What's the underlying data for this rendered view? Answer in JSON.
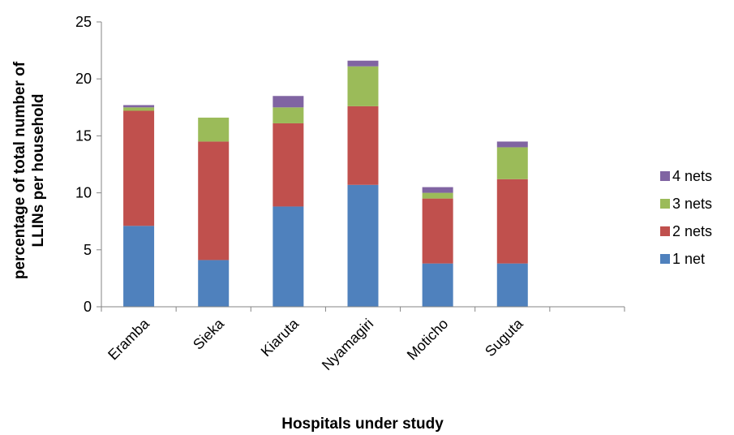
{
  "chart_data": {
    "type": "bar",
    "stacked": true,
    "title": "",
    "xlabel": "Hospitals under study",
    "ylabel_lines": [
      "percentage of total number of",
      "LLINs per household"
    ],
    "ylim": [
      0,
      25
    ],
    "yticks": [
      0,
      5,
      10,
      15,
      20,
      25
    ],
    "grid": false,
    "legend_position": "right",
    "categories": [
      "Eramba",
      "Sieka",
      "Kiaruta",
      "Nyamagiri",
      "Moticho",
      "Suguta",
      ""
    ],
    "series": [
      {
        "name": "1 net",
        "color": "#4f81bd",
        "values": [
          7.1,
          4.1,
          8.8,
          10.7,
          3.8,
          3.8,
          0
        ]
      },
      {
        "name": "2 nets",
        "color": "#c0504d",
        "values": [
          10.1,
          10.4,
          7.3,
          6.9,
          5.7,
          7.4,
          0
        ]
      },
      {
        "name": "3 nets",
        "color": "#9bbb59",
        "values": [
          0.3,
          2.1,
          1.4,
          3.5,
          0.5,
          2.8,
          0
        ]
      },
      {
        "name": "4 nets",
        "color": "#8064a2",
        "values": [
          0.2,
          0,
          1.0,
          0.5,
          0.5,
          0.5,
          0
        ]
      }
    ]
  }
}
